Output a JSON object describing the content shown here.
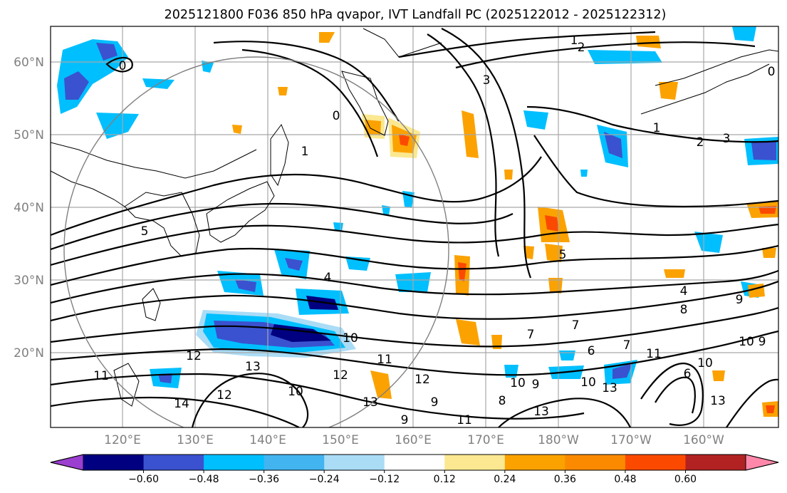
{
  "title": "2025121800 F036 850 hPa qvapor, IVT Landfall PC (2025122012 - 2025122312)",
  "lat_labels": [
    "60°N",
    "50°N",
    "40°N",
    "30°N",
    "20°N"
  ],
  "lon_labels": [
    "120°E",
    "130°E",
    "140°E",
    "150°E",
    "160°E",
    "170°E",
    "180°W",
    "170°W",
    "160°W"
  ],
  "colorbar": {
    "colors": [
      "#9b3fd0",
      "#000080",
      "#3a52cf",
      "#00bfff",
      "#42b4ef",
      "#aadcf6",
      "#ffffff",
      "#fbe890",
      "#fba200",
      "#fb8a00",
      "#fb4a00",
      "#b22222",
      "#ff88aa"
    ],
    "ticks": [
      "−0.60",
      "−0.48",
      "−0.36",
      "−0.24",
      "−0.12",
      "0.12",
      "0.24",
      "0.36",
      "0.48",
      "0.60"
    ]
  },
  "contour_labels": [
    "0",
    "1",
    "2",
    "0",
    "3",
    "1",
    "2",
    "3",
    "0",
    "1",
    "5",
    "4",
    "5",
    "4",
    "8",
    "9",
    "7",
    "7",
    "7",
    "6",
    "10",
    "12",
    "13",
    "11",
    "12",
    "11",
    "13",
    "14",
    "12",
    "10",
    "9",
    "12",
    "9",
    "11",
    "10",
    "9",
    "10",
    "13",
    "13",
    "11",
    "10",
    "6",
    "8",
    "13",
    "10",
    "9"
  ],
  "field_colors": {
    "neg_light": "#aadcf6",
    "neg_mid": "#00bfff",
    "neg_strong": "#3a52cf",
    "neg_max": "#000080",
    "pos_light": "#fbe890",
    "pos_mid": "#fba200",
    "pos_strong": "#fb4a00"
  }
}
